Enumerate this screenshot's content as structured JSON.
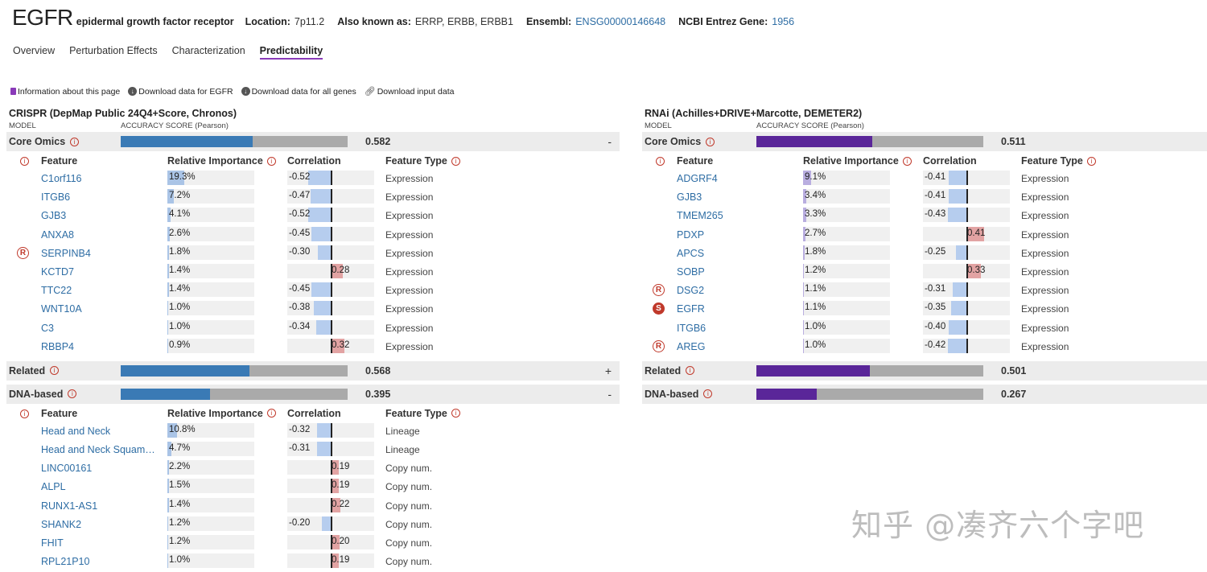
{
  "header": {
    "symbol": "EGFR",
    "full_name": "epidermal growth factor receptor",
    "location_label": "Location:",
    "location": "7p11.2",
    "aka_label": "Also known as:",
    "aka": "ERRP, ERBB, ERBB1",
    "ensembl_label": "Ensembl:",
    "ensembl": "ENSG00000146648",
    "entrez_label": "NCBI Entrez Gene:",
    "entrez": "1956"
  },
  "tabs": [
    {
      "label": "Overview"
    },
    {
      "label": "Perturbation Effects"
    },
    {
      "label": "Characterization"
    },
    {
      "label": "Predictability"
    }
  ],
  "toolbar": {
    "info": "Information about this page",
    "dl_gene": "Download data for EGFR",
    "dl_all": "Download data for all genes",
    "dl_input": "Download input data"
  },
  "columns": {
    "model": "MODEL",
    "accuracy": "ACCURACY SCORE (Pearson)",
    "feature": "Feature",
    "importance": "Relative Importance",
    "correlation": "Correlation",
    "type": "Feature Type"
  },
  "colors": {
    "crispr": "#3a7ab5",
    "rnai": "#5a2699"
  },
  "crispr": {
    "title": "CRISPR (DepMap Public 24Q4+Score, Chronos)",
    "sections": [
      {
        "label": "Core Omics",
        "accuracy": 0.582,
        "accuracy_text": "0.582",
        "toggle": "-",
        "features": [
          {
            "name": "C1orf116",
            "importance": 19.3,
            "importance_text": "19.3%",
            "corr": -0.52,
            "corr_text": "-0.52",
            "type": "Expression",
            "badge": ""
          },
          {
            "name": "ITGB6",
            "importance": 7.2,
            "importance_text": "7.2%",
            "corr": -0.47,
            "corr_text": "-0.47",
            "type": "Expression",
            "badge": ""
          },
          {
            "name": "GJB3",
            "importance": 4.1,
            "importance_text": "4.1%",
            "corr": -0.52,
            "corr_text": "-0.52",
            "type": "Expression",
            "badge": ""
          },
          {
            "name": "ANXA8",
            "importance": 2.6,
            "importance_text": "2.6%",
            "corr": -0.45,
            "corr_text": "-0.45",
            "type": "Expression",
            "badge": ""
          },
          {
            "name": "SERPINB4",
            "importance": 1.8,
            "importance_text": "1.8%",
            "corr": -0.3,
            "corr_text": "-0.30",
            "type": "Expression",
            "badge": "R"
          },
          {
            "name": "KCTD7",
            "importance": 1.4,
            "importance_text": "1.4%",
            "corr": 0.28,
            "corr_text": "0.28",
            "type": "Expression",
            "badge": ""
          },
          {
            "name": "TTC22",
            "importance": 1.4,
            "importance_text": "1.4%",
            "corr": -0.45,
            "corr_text": "-0.45",
            "type": "Expression",
            "badge": ""
          },
          {
            "name": "WNT10A",
            "importance": 1.0,
            "importance_text": "1.0%",
            "corr": -0.38,
            "corr_text": "-0.38",
            "type": "Expression",
            "badge": ""
          },
          {
            "name": "C3",
            "importance": 1.0,
            "importance_text": "1.0%",
            "corr": -0.34,
            "corr_text": "-0.34",
            "type": "Expression",
            "badge": ""
          },
          {
            "name": "RBBP4",
            "importance": 0.9,
            "importance_text": "0.9%",
            "corr": 0.32,
            "corr_text": "0.32",
            "type": "Expression",
            "badge": ""
          }
        ]
      },
      {
        "label": "Related",
        "accuracy": 0.568,
        "accuracy_text": "0.568",
        "toggle": "+",
        "features": []
      },
      {
        "label": "DNA-based",
        "accuracy": 0.395,
        "accuracy_text": "0.395",
        "toggle": "-",
        "features": [
          {
            "name": "Head and Neck",
            "importance": 10.8,
            "importance_text": "10.8%",
            "corr": -0.32,
            "corr_text": "-0.32",
            "type": "Lineage",
            "badge": ""
          },
          {
            "name": "Head and Neck Squamo...",
            "importance": 4.7,
            "importance_text": "4.7%",
            "corr": -0.31,
            "corr_text": "-0.31",
            "type": "Lineage",
            "badge": ""
          },
          {
            "name": "LINC00161",
            "importance": 2.2,
            "importance_text": "2.2%",
            "corr": 0.19,
            "corr_text": "0.19",
            "type": "Copy num.",
            "badge": ""
          },
          {
            "name": "ALPL",
            "importance": 1.5,
            "importance_text": "1.5%",
            "corr": 0.19,
            "corr_text": "0.19",
            "type": "Copy num.",
            "badge": ""
          },
          {
            "name": "RUNX1-AS1",
            "importance": 1.4,
            "importance_text": "1.4%",
            "corr": 0.22,
            "corr_text": "0.22",
            "type": "Copy num.",
            "badge": ""
          },
          {
            "name": "SHANK2",
            "importance": 1.2,
            "importance_text": "1.2%",
            "corr": -0.2,
            "corr_text": "-0.20",
            "type": "Copy num.",
            "badge": ""
          },
          {
            "name": "FHIT",
            "importance": 1.2,
            "importance_text": "1.2%",
            "corr": 0.2,
            "corr_text": "0.20",
            "type": "Copy num.",
            "badge": ""
          },
          {
            "name": "RPL21P10",
            "importance": 1.0,
            "importance_text": "1.0%",
            "corr": 0.19,
            "corr_text": "0.19",
            "type": "Copy num.",
            "badge": ""
          }
        ]
      }
    ]
  },
  "rnai": {
    "title": "RNAi (Achilles+DRIVE+Marcotte, DEMETER2)",
    "sections": [
      {
        "label": "Core Omics",
        "accuracy": 0.511,
        "accuracy_text": "0.511",
        "toggle": "",
        "features": [
          {
            "name": "ADGRF4",
            "importance": 9.1,
            "importance_text": "9.1%",
            "corr": -0.41,
            "corr_text": "-0.41",
            "type": "Expression",
            "badge": ""
          },
          {
            "name": "GJB3",
            "importance": 3.4,
            "importance_text": "3.4%",
            "corr": -0.41,
            "corr_text": "-0.41",
            "type": "Expression",
            "badge": ""
          },
          {
            "name": "TMEM265",
            "importance": 3.3,
            "importance_text": "3.3%",
            "corr": -0.43,
            "corr_text": "-0.43",
            "type": "Expression",
            "badge": ""
          },
          {
            "name": "PDXP",
            "importance": 2.7,
            "importance_text": "2.7%",
            "corr": 0.41,
            "corr_text": "0.41",
            "type": "Expression",
            "badge": ""
          },
          {
            "name": "APCS",
            "importance": 1.8,
            "importance_text": "1.8%",
            "corr": -0.25,
            "corr_text": "-0.25",
            "type": "Expression",
            "badge": ""
          },
          {
            "name": "SOBP",
            "importance": 1.2,
            "importance_text": "1.2%",
            "corr": 0.33,
            "corr_text": "0.33",
            "type": "Expression",
            "badge": ""
          },
          {
            "name": "DSG2",
            "importance": 1.1,
            "importance_text": "1.1%",
            "corr": -0.31,
            "corr_text": "-0.31",
            "type": "Expression",
            "badge": "R"
          },
          {
            "name": "EGFR",
            "importance": 1.1,
            "importance_text": "1.1%",
            "corr": -0.35,
            "corr_text": "-0.35",
            "type": "Expression",
            "badge": "S"
          },
          {
            "name": "ITGB6",
            "importance": 1.0,
            "importance_text": "1.0%",
            "corr": -0.4,
            "corr_text": "-0.40",
            "type": "Expression",
            "badge": ""
          },
          {
            "name": "AREG",
            "importance": 1.0,
            "importance_text": "1.0%",
            "corr": -0.42,
            "corr_text": "-0.42",
            "type": "Expression",
            "badge": "R"
          }
        ]
      },
      {
        "label": "Related",
        "accuracy": 0.501,
        "accuracy_text": "0.501",
        "toggle": "",
        "features": []
      },
      {
        "label": "DNA-based",
        "accuracy": 0.267,
        "accuracy_text": "0.267",
        "toggle": "",
        "features": []
      }
    ]
  },
  "watermark": "知乎 @凑齐六个字吧"
}
